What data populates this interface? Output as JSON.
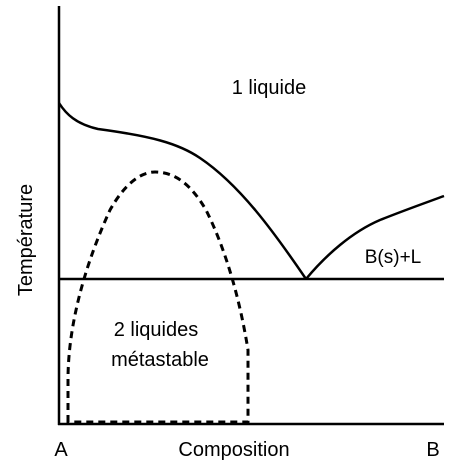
{
  "diagram": {
    "y_axis_label": "Température",
    "x_axis_label": "Composition",
    "left_component": "A",
    "right_component": "B",
    "region_labels": {
      "liquid": "1 liquide",
      "solid_liquid": "B(s)+L",
      "metastable_line1": "2 liquides",
      "metastable_line2": "métastable"
    },
    "colors": {
      "lines": "#000000",
      "background": "#ffffff"
    }
  }
}
